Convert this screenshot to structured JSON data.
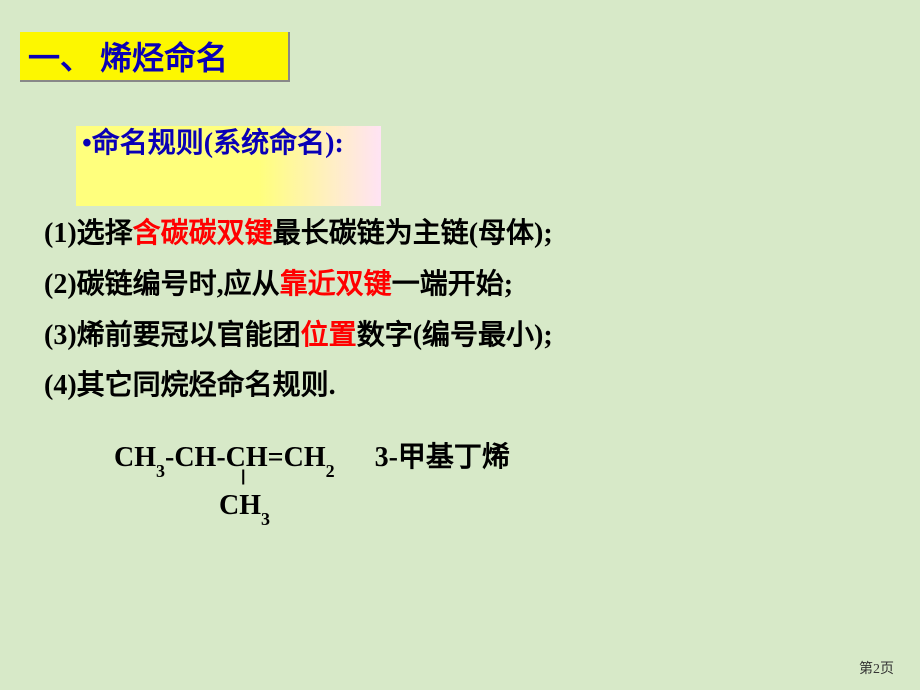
{
  "background_color": "#d7e9c8",
  "title": {
    "text": "一、 烯烃命名",
    "bg": "#fdf700",
    "color": "#0a00b6"
  },
  "subtitle": {
    "bullet": "•命名规则(系统命名):",
    "bg_from": "#ffff7d",
    "bg_to": "#ffe3f4",
    "color": "#0a00b6"
  },
  "rules": [
    {
      "num": "(1)",
      "pre": "选择",
      "hl": "含碳碳双键",
      "post": "最长碳链为主链(母体);"
    },
    {
      "num": "(2)",
      "pre": "碳链编号时,应从",
      "hl": "靠近双键",
      "post": "一端开始;"
    },
    {
      "num": "(3)",
      "pre": "烯前要冠以官能团",
      "hl": "位置",
      "post": "数字(编号最小);"
    },
    {
      "num": "(4)",
      "pre": "其它同烷烃命名规则.",
      "hl": "",
      "post": ""
    }
  ],
  "highlight_color": "#ff0000",
  "example": {
    "line1_parts": [
      "CH",
      "3",
      "-CH-CH=CH",
      "2"
    ],
    "name": "3-甲基丁烯",
    "vline": "|",
    "ch3_parts": [
      "CH",
      "3"
    ]
  },
  "pagenum": "第2页"
}
